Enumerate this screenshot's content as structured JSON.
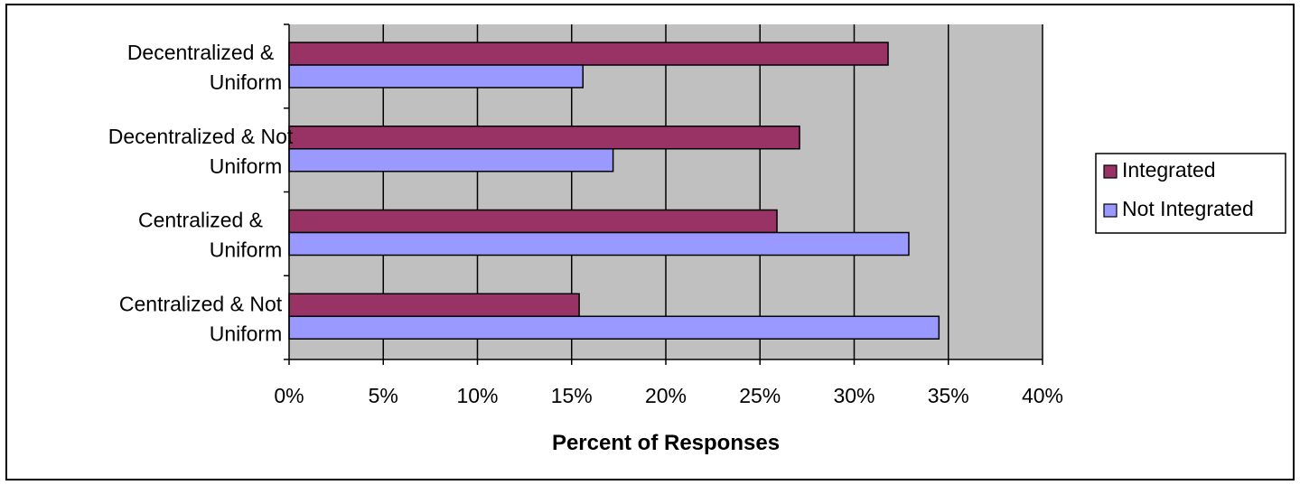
{
  "chart_data": {
    "type": "bar",
    "orientation": "horizontal",
    "categories": [
      [
        "Decentralized &",
        "Uniform"
      ],
      [
        "Decentralized & Not",
        "Uniform"
      ],
      [
        "Centralized &",
        "Uniform"
      ],
      [
        "Centralized & Not",
        "Uniform"
      ]
    ],
    "series": [
      {
        "name": "Integrated",
        "values": [
          31.8,
          27.1,
          25.9,
          15.4
        ],
        "color": "#993366"
      },
      {
        "name": "Not Integrated",
        "values": [
          15.6,
          17.2,
          32.9,
          34.5
        ],
        "color": "#9999ff"
      }
    ],
    "xlabel": "Percent of Responses",
    "xlim": [
      0,
      40
    ],
    "xticks": [
      "0%",
      "5%",
      "10%",
      "15%",
      "20%",
      "25%",
      "30%",
      "35%",
      "40%"
    ],
    "plot_background": "#c0c0c0",
    "grid": true,
    "legend_position": "right"
  }
}
